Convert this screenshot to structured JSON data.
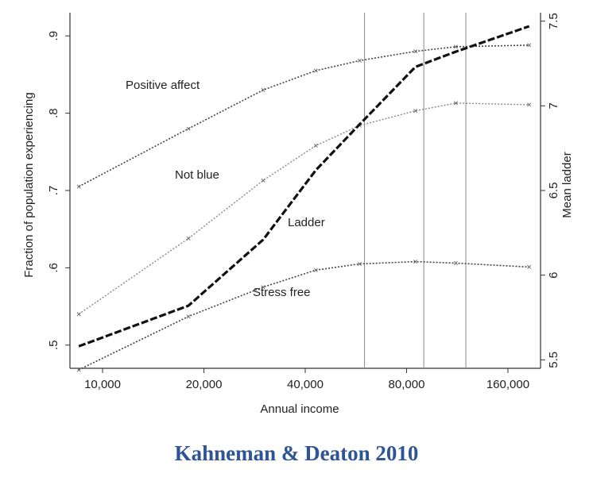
{
  "caption": "Kahneman & Deaton 2010",
  "chart_data": {
    "type": "line",
    "xlabel": "Annual income",
    "ylabel_left": "Fraction of population experiencing",
    "ylabel_right": "Mean ladder",
    "x_scale": "log",
    "x_ticks": [
      10000,
      20000,
      40000,
      80000,
      160000
    ],
    "x_tick_labels": [
      "10,000",
      "20,000",
      "40,000",
      "80,000",
      "160,000"
    ],
    "xlim": [
      8000,
      200000
    ],
    "y_left_ticks": [
      0.5,
      0.6,
      0.7,
      0.8,
      0.9
    ],
    "y_left_tick_labels": [
      ".5",
      ".6",
      ".7",
      ".8",
      ".9"
    ],
    "y_left_lim": [
      0.47,
      0.93
    ],
    "y_right_ticks": [
      5.5,
      6,
      6.5,
      7,
      7.5
    ],
    "y_right_tick_labels": [
      "5.5",
      "6",
      "6.5",
      "7",
      "7.5"
    ],
    "y_right_lim": [
      5.45,
      7.55
    ],
    "vertical_lines_x": [
      60000,
      90000,
      120000
    ],
    "series": [
      {
        "name": "Positive affect",
        "axis": "left",
        "style": "dotted",
        "x": [
          8500,
          18000,
          30000,
          43000,
          58000,
          85000,
          112000,
          185000
        ],
        "y": [
          0.705,
          0.78,
          0.83,
          0.855,
          0.868,
          0.88,
          0.886,
          0.888
        ]
      },
      {
        "name": "Not blue",
        "axis": "left",
        "style": "dotted-light",
        "x": [
          8500,
          18000,
          30000,
          43000,
          58000,
          85000,
          112000,
          185000
        ],
        "y": [
          0.54,
          0.638,
          0.713,
          0.758,
          0.784,
          0.803,
          0.813,
          0.811
        ]
      },
      {
        "name": "Ladder",
        "axis": "right",
        "style": "dashed-bold",
        "x": [
          8500,
          18000,
          30000,
          43000,
          58000,
          85000,
          112000,
          185000
        ],
        "y": [
          5.58,
          5.82,
          6.21,
          6.62,
          6.89,
          7.23,
          7.32,
          7.47
        ]
      },
      {
        "name": "Stress free",
        "axis": "left",
        "style": "dotted",
        "x": [
          8500,
          18000,
          30000,
          43000,
          58000,
          85000,
          112000,
          185000
        ],
        "y": [
          0.468,
          0.537,
          0.575,
          0.597,
          0.605,
          0.608,
          0.606,
          0.601
        ]
      }
    ],
    "grid": false,
    "legend": "inline labels"
  }
}
